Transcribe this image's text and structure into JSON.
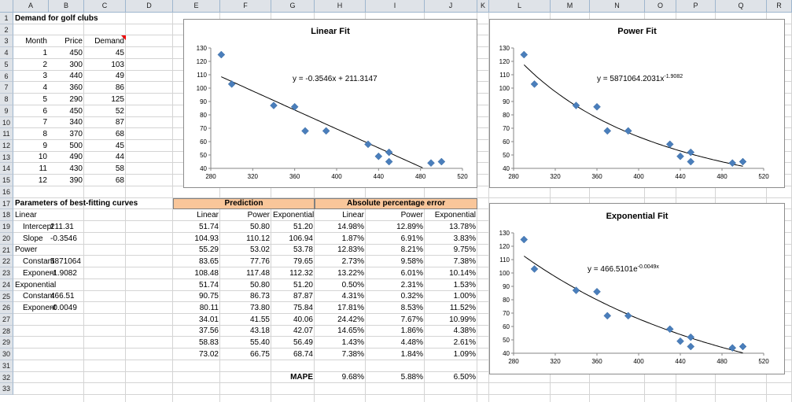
{
  "columns": [
    "A",
    "B",
    "C",
    "D",
    "E",
    "F",
    "G",
    "H",
    "I",
    "J",
    "K",
    "L",
    "M",
    "N",
    "O",
    "P",
    "Q",
    "R"
  ],
  "rows": [
    "1",
    "2",
    "3",
    "4",
    "5",
    "6",
    "7",
    "8",
    "9",
    "10",
    "11",
    "12",
    "13",
    "14",
    "15",
    "16",
    "17",
    "18",
    "19",
    "20",
    "21",
    "22",
    "23",
    "24",
    "25",
    "26",
    "27",
    "28",
    "29",
    "30",
    "31",
    "32",
    "33"
  ],
  "title": "Demand for golf clubs",
  "data_headers": {
    "month": "Month",
    "price": "Price",
    "demand": "Demand"
  },
  "data_rows": [
    {
      "month": "1",
      "price": "450",
      "demand": "45"
    },
    {
      "month": "2",
      "price": "300",
      "demand": "103"
    },
    {
      "month": "3",
      "price": "440",
      "demand": "49"
    },
    {
      "month": "4",
      "price": "360",
      "demand": "86"
    },
    {
      "month": "5",
      "price": "290",
      "demand": "125"
    },
    {
      "month": "6",
      "price": "450",
      "demand": "52"
    },
    {
      "month": "7",
      "price": "340",
      "demand": "87"
    },
    {
      "month": "8",
      "price": "370",
      "demand": "68"
    },
    {
      "month": "9",
      "price": "500",
      "demand": "45"
    },
    {
      "month": "10",
      "price": "490",
      "demand": "44"
    },
    {
      "month": "11",
      "price": "430",
      "demand": "58"
    },
    {
      "month": "12",
      "price": "390",
      "demand": "68"
    }
  ],
  "params": {
    "title": "Parameters of best-fitting curves",
    "rows": [
      {
        "label": "Linear",
        "value": "",
        "indent": false
      },
      {
        "label": "Intercept",
        "value": "211.31",
        "indent": true
      },
      {
        "label": "Slope",
        "value": "-0.3546",
        "indent": true
      },
      {
        "label": "Power",
        "value": "",
        "indent": false
      },
      {
        "label": "Constant",
        "value": "5871064",
        "indent": true
      },
      {
        "label": "Exponent",
        "value": "-1.9082",
        "indent": true
      },
      {
        "label": "Exponential",
        "value": "",
        "indent": false
      },
      {
        "label": "Constant",
        "value": "466.51",
        "indent": true
      },
      {
        "label": "Exponent",
        "value": "-0.0049",
        "indent": true
      }
    ]
  },
  "prediction": {
    "band": "Prediction",
    "headers": [
      "Linear",
      "Power",
      "Exponential"
    ],
    "rows": [
      [
        "51.74",
        "50.80",
        "51.20"
      ],
      [
        "104.93",
        "110.12",
        "106.94"
      ],
      [
        "55.29",
        "53.02",
        "53.78"
      ],
      [
        "83.65",
        "77.76",
        "79.65"
      ],
      [
        "108.48",
        "117.48",
        "112.32"
      ],
      [
        "51.74",
        "50.80",
        "51.20"
      ],
      [
        "90.75",
        "86.73",
        "87.87"
      ],
      [
        "80.11",
        "73.80",
        "75.84"
      ],
      [
        "34.01",
        "41.55",
        "40.06"
      ],
      [
        "37.56",
        "43.18",
        "42.07"
      ],
      [
        "58.83",
        "55.40",
        "56.49"
      ],
      [
        "73.02",
        "66.75",
        "68.74"
      ]
    ]
  },
  "ape": {
    "band": "Absolute percentage error",
    "headers": [
      "Linear",
      "Power",
      "Exponential"
    ],
    "rows": [
      [
        "14.98%",
        "12.89%",
        "13.78%"
      ],
      [
        "1.87%",
        "6.91%",
        "3.83%"
      ],
      [
        "12.83%",
        "8.21%",
        "9.75%"
      ],
      [
        "2.73%",
        "9.58%",
        "7.38%"
      ],
      [
        "13.22%",
        "6.01%",
        "10.14%"
      ],
      [
        "0.50%",
        "2.31%",
        "1.53%"
      ],
      [
        "4.31%",
        "0.32%",
        "1.00%"
      ],
      [
        "17.81%",
        "8.53%",
        "11.52%"
      ],
      [
        "24.42%",
        "7.67%",
        "10.99%"
      ],
      [
        "14.65%",
        "1.86%",
        "4.38%"
      ],
      [
        "1.43%",
        "4.48%",
        "2.61%"
      ],
      [
        "7.38%",
        "1.84%",
        "1.09%"
      ]
    ]
  },
  "mape": {
    "label": "MAPE",
    "values": [
      "9.68%",
      "5.88%",
      "6.50%"
    ]
  },
  "colors": {
    "marker": "#4a7ebb",
    "header_bg": "#dfe3e8",
    "band_bg": "#f9c69a",
    "grid": "#d4d4d4"
  },
  "chart_data": [
    {
      "type": "scatter",
      "title": "Linear Fit",
      "equation": "y = -0.3546x + 211.3147",
      "x": [
        450,
        300,
        440,
        360,
        290,
        450,
        340,
        370,
        500,
        490,
        430,
        390
      ],
      "y": [
        45,
        103,
        49,
        86,
        125,
        52,
        87,
        68,
        45,
        44,
        58,
        68
      ],
      "xlim": [
        280,
        520
      ],
      "ylim": [
        40,
        130
      ],
      "xticks": [
        "280",
        "320",
        "360",
        "400",
        "440",
        "480",
        "520"
      ],
      "yticks": [
        "40",
        "50",
        "60",
        "70",
        "80",
        "90",
        "100",
        "110",
        "120",
        "130"
      ],
      "trend": {
        "kind": "linear",
        "a": 211.3147,
        "b": -0.3546
      }
    },
    {
      "type": "scatter",
      "title": "Power Fit",
      "equation": "y = 5871064.2031x",
      "equation_sup": "-1.9082",
      "x": [
        450,
        300,
        440,
        360,
        290,
        450,
        340,
        370,
        500,
        490,
        430,
        390
      ],
      "y": [
        45,
        103,
        49,
        86,
        125,
        52,
        87,
        68,
        45,
        44,
        58,
        68
      ],
      "xlim": [
        280,
        520
      ],
      "ylim": [
        40,
        130
      ],
      "xticks": [
        "280",
        "320",
        "360",
        "400",
        "440",
        "480",
        "520"
      ],
      "yticks": [
        "40",
        "50",
        "60",
        "70",
        "80",
        "90",
        "100",
        "110",
        "120",
        "130"
      ],
      "trend": {
        "kind": "power",
        "a": 5871064.2031,
        "b": -1.9082
      }
    },
    {
      "type": "scatter",
      "title": "Exponential  Fit",
      "equation": "y = 466.5101e",
      "equation_sup": "-0.0049x",
      "x": [
        450,
        300,
        440,
        360,
        290,
        450,
        340,
        370,
        500,
        490,
        430,
        390
      ],
      "y": [
        45,
        103,
        49,
        86,
        125,
        52,
        87,
        68,
        45,
        44,
        58,
        68
      ],
      "xlim": [
        280,
        520
      ],
      "ylim": [
        40,
        130
      ],
      "xticks": [
        "280",
        "320",
        "360",
        "400",
        "440",
        "480",
        "520"
      ],
      "yticks": [
        "40",
        "50",
        "60",
        "70",
        "80",
        "90",
        "100",
        "110",
        "120",
        "130"
      ],
      "trend": {
        "kind": "exp",
        "a": 466.5101,
        "b": -0.0049
      }
    }
  ]
}
